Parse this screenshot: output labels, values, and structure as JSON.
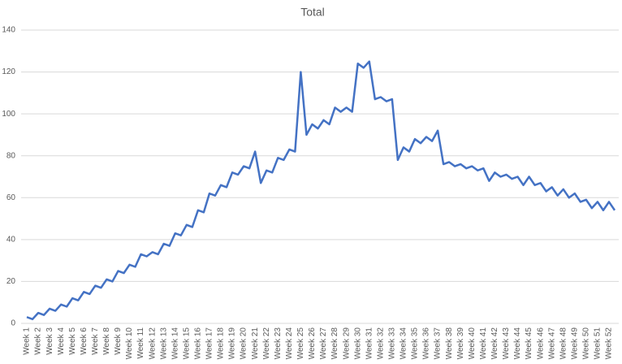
{
  "chart_data": {
    "type": "line",
    "title": "Total",
    "categories": [
      "Week 1",
      null,
      "Week 2",
      null,
      "Week 3",
      null,
      "Week 4",
      null,
      "Week 5",
      null,
      "Week 6",
      null,
      "Week 7",
      null,
      "Week 8",
      null,
      "Week 9",
      null,
      "Week 10",
      null,
      "Week 11",
      null,
      "Week 12",
      null,
      "Week 13",
      null,
      "Week 14",
      null,
      "Week 15",
      null,
      "Week 16",
      null,
      "Week 17",
      null,
      "Week 18",
      null,
      "Week 19",
      null,
      "Week 20",
      null,
      "Week 21",
      null,
      "Week 22",
      null,
      "Week 23",
      null,
      "Week 24",
      null,
      "Week 25",
      null,
      "Week 26",
      null,
      "Week 27",
      null,
      "Week 28",
      null,
      "Week 29",
      null,
      "Week 30",
      null,
      "Week 31",
      null,
      "Week 32",
      null,
      "Week 33",
      null,
      "Week 34",
      null,
      "Week 35",
      null,
      "Week 36",
      null,
      "Week 37",
      null,
      "Week 38",
      null,
      "Week 39",
      null,
      "Week 40",
      null,
      "Week 41",
      null,
      "Week 42",
      null,
      "Week 43",
      null,
      "Week 44",
      null,
      "Week 45",
      null,
      "Week 46",
      null,
      "Week 47",
      null,
      "Week 48",
      null,
      "Week 49",
      null,
      "Week 50",
      null,
      "Week 51",
      null,
      "Week 52",
      null
    ],
    "values": [
      3,
      2,
      5,
      4,
      7,
      6,
      9,
      8,
      12,
      11,
      15,
      14,
      18,
      17,
      21,
      20,
      25,
      24,
      28,
      27,
      33,
      32,
      34,
      33,
      38,
      37,
      43,
      42,
      47,
      46,
      54,
      53,
      62,
      61,
      66,
      65,
      72,
      71,
      75,
      74,
      82,
      67,
      73,
      72,
      79,
      78,
      83,
      82,
      120,
      90,
      95,
      93,
      97,
      95,
      103,
      101,
      103,
      101,
      124,
      122,
      125,
      107,
      108,
      106,
      107,
      78,
      84,
      82,
      88,
      86,
      89,
      87,
      92,
      76,
      77,
      75,
      76,
      74,
      75,
      73,
      74,
      68,
      72,
      70,
      71,
      69,
      70,
      66,
      70,
      66,
      67,
      63,
      65,
      61,
      64,
      60,
      62,
      58,
      59,
      55,
      58,
      54,
      58,
      54
    ],
    "color": "#4472c4",
    "ylim": [
      0,
      140
    ],
    "yticks": [
      0,
      20,
      40,
      60,
      80,
      100,
      120,
      140
    ],
    "grid": true
  }
}
